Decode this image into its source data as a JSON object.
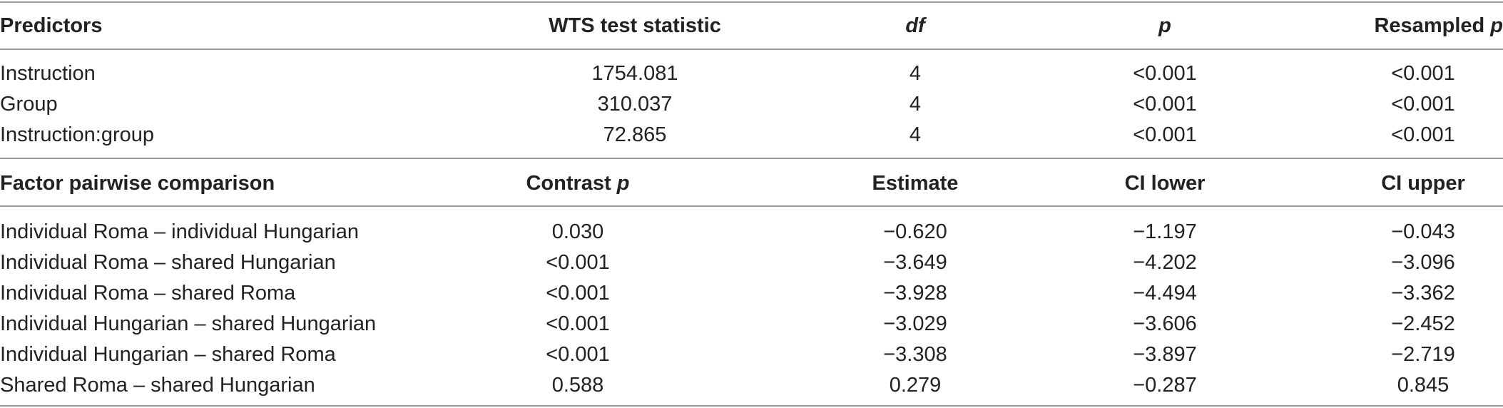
{
  "section1": {
    "headers": {
      "predictors": "Predictors",
      "wts": "WTS test statistic",
      "df": "df",
      "p": "p",
      "resampled": "Resampled",
      "resampled_p": "p"
    },
    "rows": [
      {
        "predictor": "Instruction",
        "wts": "1754.081",
        "df": "4",
        "p": "<0.001",
        "resampled_p": "<0.001"
      },
      {
        "predictor": "Group",
        "wts": "310.037",
        "df": "4",
        "p": "<0.001",
        "resampled_p": "<0.001"
      },
      {
        "predictor": "Instruction:group",
        "wts": "72.865",
        "df": "4",
        "p": "<0.001",
        "resampled_p": "<0.001"
      }
    ]
  },
  "section2": {
    "headers": {
      "comparison": "Factor pairwise comparison",
      "contrast": "Contrast",
      "contrast_p": "p",
      "estimate": "Estimate",
      "ci_lower": "CI lower",
      "ci_upper": "CI upper"
    },
    "rows": [
      {
        "comparison": "Individual Roma – individual Hungarian",
        "contrast_p": "0.030",
        "estimate": "−0.620",
        "ci_lower": "−1.197",
        "ci_upper": "−0.043"
      },
      {
        "comparison": "Individual Roma – shared Hungarian",
        "contrast_p": "<0.001",
        "estimate": "−3.649",
        "ci_lower": "−4.202",
        "ci_upper": "−3.096"
      },
      {
        "comparison": "Individual Roma – shared Roma",
        "contrast_p": "<0.001",
        "estimate": "−3.928",
        "ci_lower": "−4.494",
        "ci_upper": "−3.362"
      },
      {
        "comparison": "Individual Hungarian – shared Hungarian",
        "contrast_p": "<0.001",
        "estimate": "−3.029",
        "ci_lower": "−3.606",
        "ci_upper": "−2.452"
      },
      {
        "comparison": "Individual Hungarian – shared Roma",
        "contrast_p": "<0.001",
        "estimate": "−3.308",
        "ci_lower": "−3.897",
        "ci_upper": "−2.719"
      },
      {
        "comparison": "Shared Roma – shared Hungarian",
        "contrast_p": "0.588",
        "estimate": "0.279",
        "ci_lower": "−0.287",
        "ci_upper": "0.845"
      }
    ]
  }
}
